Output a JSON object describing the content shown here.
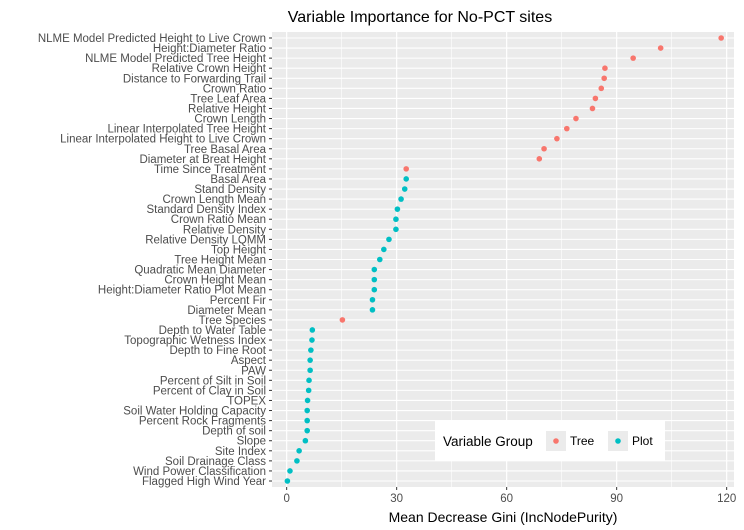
{
  "chart_data": {
    "type": "scatter",
    "title": "Variable Importance for No-PCT sites",
    "xlabel": "Mean Decrease Gini (IncNodePurity)",
    "ylabel": "",
    "xlim": [
      -4,
      122
    ],
    "xticks": [
      0,
      30,
      60,
      90,
      120
    ],
    "grid": true,
    "legend": {
      "title": "Variable Group",
      "placement": "bottom-right-inside",
      "entries": [
        {
          "name": "Tree",
          "color": "#F8766D"
        },
        {
          "name": "Plot",
          "color": "#00BFC4"
        }
      ]
    },
    "points": [
      {
        "label": "NLME Model Predicted Height to Live Crown",
        "value": 118.5,
        "group": "Tree"
      },
      {
        "label": "Height:Diameter Ratio",
        "value": 102.0,
        "group": "Tree"
      },
      {
        "label": "NLME Model Predicted Tree Height",
        "value": 94.5,
        "group": "Tree"
      },
      {
        "label": "Relative Crown Height",
        "value": 86.8,
        "group": "Tree"
      },
      {
        "label": "Distance to Forwarding Trail",
        "value": 86.6,
        "group": "Tree"
      },
      {
        "label": "Crown Ratio",
        "value": 85.8,
        "group": "Tree"
      },
      {
        "label": "Tree Leaf Area",
        "value": 84.2,
        "group": "Tree"
      },
      {
        "label": "Relative Height",
        "value": 83.4,
        "group": "Tree"
      },
      {
        "label": "Crown Length",
        "value": 78.9,
        "group": "Tree"
      },
      {
        "label": "Linear Interpolated Tree Height",
        "value": 76.4,
        "group": "Tree"
      },
      {
        "label": "Linear Interpolated Height to Live Crown",
        "value": 73.7,
        "group": "Tree"
      },
      {
        "label": "Tree Basal Area",
        "value": 70.2,
        "group": "Tree"
      },
      {
        "label": "Diameter at Breat Height",
        "value": 68.9,
        "group": "Tree"
      },
      {
        "label": "Time Since Treatment",
        "value": 32.6,
        "group": "Tree"
      },
      {
        "label": "Basal Area",
        "value": 32.6,
        "group": "Plot"
      },
      {
        "label": "Stand Density",
        "value": 32.2,
        "group": "Plot"
      },
      {
        "label": "Crown Length Mean",
        "value": 31.2,
        "group": "Plot"
      },
      {
        "label": "Standard Density Index",
        "value": 30.2,
        "group": "Plot"
      },
      {
        "label": "Crown Ratio Mean",
        "value": 29.8,
        "group": "Plot"
      },
      {
        "label": "Relative Density",
        "value": 29.8,
        "group": "Plot"
      },
      {
        "label": "Relative Density LQMM",
        "value": 27.9,
        "group": "Plot"
      },
      {
        "label": "Top Height",
        "value": 26.5,
        "group": "Plot"
      },
      {
        "label": "Tree Height Mean",
        "value": 25.4,
        "group": "Plot"
      },
      {
        "label": "Quadratic Mean Diameter",
        "value": 23.9,
        "group": "Plot"
      },
      {
        "label": "Crown Height Mean",
        "value": 23.9,
        "group": "Plot"
      },
      {
        "label": "Height:Diameter Ratio Plot Mean",
        "value": 23.9,
        "group": "Plot"
      },
      {
        "label": "Percent Fir",
        "value": 23.4,
        "group": "Plot"
      },
      {
        "label": "Diameter Mean",
        "value": 23.4,
        "group": "Plot"
      },
      {
        "label": "Tree Species",
        "value": 15.2,
        "group": "Tree"
      },
      {
        "label": "Depth to Water Table",
        "value": 7.0,
        "group": "Plot"
      },
      {
        "label": "Topographic Wetness Index",
        "value": 6.9,
        "group": "Plot"
      },
      {
        "label": "Depth to Fine Root",
        "value": 6.6,
        "group": "Plot"
      },
      {
        "label": "Aspect",
        "value": 6.4,
        "group": "Plot"
      },
      {
        "label": "PAW",
        "value": 6.4,
        "group": "Plot"
      },
      {
        "label": "Percent of Silt in Soil",
        "value": 6.1,
        "group": "Plot"
      },
      {
        "label": "Percent of Clay in Soil",
        "value": 6.0,
        "group": "Plot"
      },
      {
        "label": "TOPEX",
        "value": 5.7,
        "group": "Plot"
      },
      {
        "label": "Soil Water Holding Capacity",
        "value": 5.6,
        "group": "Plot"
      },
      {
        "label": "Percent Rock Fragments",
        "value": 5.6,
        "group": "Plot"
      },
      {
        "label": "Depth of soil",
        "value": 5.6,
        "group": "Plot"
      },
      {
        "label": "Slope",
        "value": 5.1,
        "group": "Plot"
      },
      {
        "label": "Site Index",
        "value": 3.4,
        "group": "Plot"
      },
      {
        "label": "Soil Drainage Class",
        "value": 2.8,
        "group": "Plot"
      },
      {
        "label": "Wind Power Classification",
        "value": 0.9,
        "group": "Plot"
      },
      {
        "label": "Flagged High Wind Year",
        "value": 0.2,
        "group": "Plot"
      }
    ]
  }
}
